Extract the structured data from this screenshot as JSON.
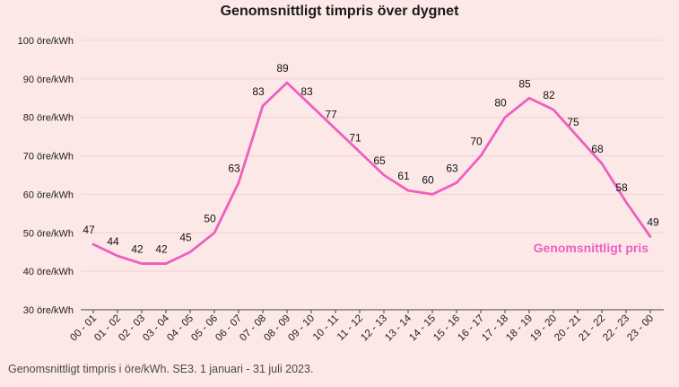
{
  "chart_data": {
    "type": "line",
    "title": "Genomsnittligt timpris över dygnet",
    "caption": "Genomsnittligt timpris i öre/kWh. SE3. 1 januari - 31 juli 2023.",
    "ylim": [
      30,
      100
    ],
    "yticks": [
      30,
      40,
      50,
      60,
      70,
      80,
      90,
      100
    ],
    "ytick_suffix": " öre/kWh",
    "grid": true,
    "categories": [
      "00 - 01",
      "01 - 02",
      "02 - 03",
      "03 - 04",
      "04 - 05",
      "05 - 06",
      "06 - 07",
      "07 - 08",
      "08 - 09",
      "09 - 10",
      "10 - 11",
      "11 - 12",
      "12 - 13",
      "13 - 14",
      "14 - 15",
      "15 - 16",
      "16 - 17",
      "17 - 18",
      "18 - 19",
      "19 - 20",
      "20 - 21",
      "21 - 22",
      "22 - 23",
      "23 - 00"
    ],
    "series": [
      {
        "name": "Genomsnittligt pris",
        "color": "#ee5fc0",
        "values": [
          47,
          44,
          42,
          42,
          45,
          50,
          63,
          83,
          89,
          83,
          77,
          71,
          65,
          61,
          60,
          63,
          70,
          80,
          85,
          82,
          75,
          68,
          58,
          49
        ]
      }
    ]
  }
}
